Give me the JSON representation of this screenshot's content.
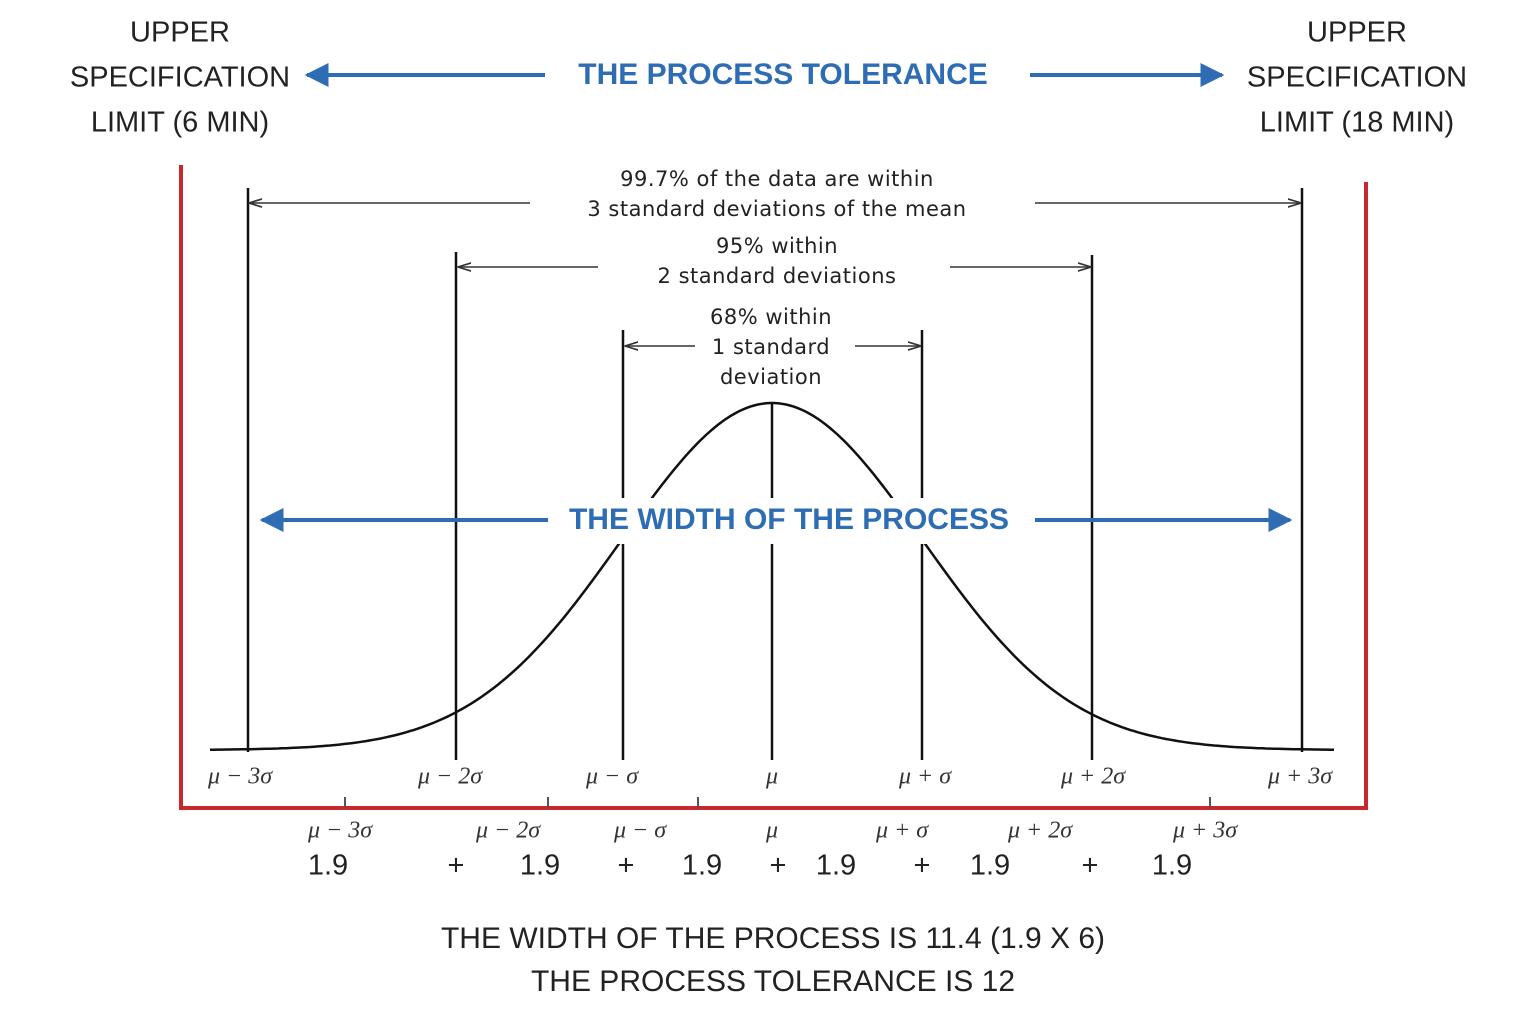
{
  "left_spec": [
    "UPPER",
    "SPECIFICATION",
    "LIMIT (6 MIN)"
  ],
  "right_spec": [
    "UPPER",
    "SPECIFICATION",
    "LIMIT (18 MIN)"
  ],
  "tolerance_label": "THE PROCESS TOLERANCE",
  "range_99": [
    "99.7% of the data are within",
    "3 standard deviations of the mean"
  ],
  "range_95": [
    "95% within",
    "2 standard deviations"
  ],
  "range_68": [
    "68% within",
    "1 standard",
    "deviation"
  ],
  "width_label": "THE WIDTH OF THE PROCESS",
  "axis_labels": [
    "μ − 3σ",
    "μ − 2σ",
    "μ − σ",
    "μ",
    "μ + σ",
    "μ + 2σ",
    "μ + 3σ"
  ],
  "segment_labels": [
    "μ − 3σ",
    "μ − 2σ",
    "μ − σ",
    "μ",
    "μ + σ",
    "μ + 2σ",
    "μ + 3σ"
  ],
  "segment_values": [
    "1.9",
    "1.9",
    "1.9",
    "1.9",
    "1.9",
    "1.9"
  ],
  "plus_signs": [
    "+",
    "+",
    "+",
    "+",
    "+"
  ],
  "footer": [
    "THE WIDTH OF THE PROCESS IS 11.4 (1.9 X 6)",
    "THE PROCESS TOLERANCE IS 12"
  ]
}
